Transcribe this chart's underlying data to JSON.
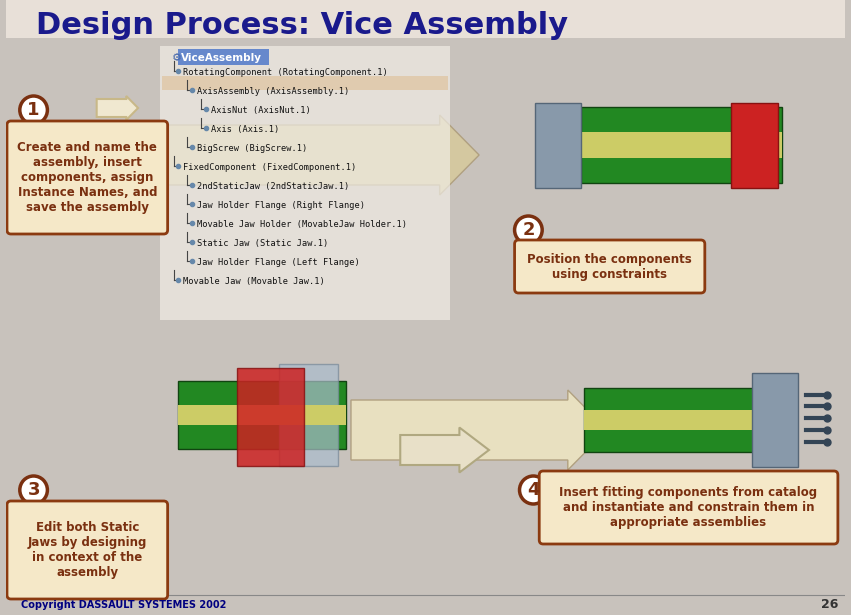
{
  "title": "Design Process: Vice Assembly",
  "title_color": "#1a1a8c",
  "title_fontsize": 22,
  "background_color": "#d4cfc9",
  "slide_bg": "#c8c2bc",
  "arrow_color": "#d4c8a0",
  "arrow_edge": "#b0a080",
  "step_numbers": [
    "1",
    "2",
    "3",
    "4"
  ],
  "step_number_color": "#7a3010",
  "step_box_fill": "#f5e8c8",
  "step_box_edge": "#8b3a10",
  "step_texts": [
    "Create and name the\nassembly, insert\ncomponents, assign\nInstance Names, and\nsave the assembly",
    "Position the components\nusing constraints",
    "Edit both Static\nJaws by designing\nin context of the\nassembly",
    "Insert fitting components from catalog\nand instantiate and constrain them in\nappropriate assemblies"
  ],
  "tree_title": "ViceAssembly",
  "tree_items": [
    "RotatingComponent (RotatingComponent.1)",
    "  AxisAssembly (AxisAssembly.1)",
    "    AxisNut (AxisNut.1)",
    "    Axis (Axis.1)",
    "  BigScrew (BigScrew.1)",
    "FixedComponent (FixedComponent.1)",
    "  2ndStaticJaw (2ndStaticJaw.1)",
    "  Jaw Holder Flange (Right Flange)",
    "  Movable Jaw Holder (MovableJaw Holder.1)",
    "  Static Jaw (Static Jaw.1)",
    "  Jaw Holder Flange (Left Flange)",
    "  Movable Jaw (Movable Jaw.1)"
  ],
  "copyright_text": "Copyright DASSAULT SYSTEMES 2002",
  "copyright_color": "#000080",
  "page_number": "26",
  "highlight_color": "#deb887"
}
